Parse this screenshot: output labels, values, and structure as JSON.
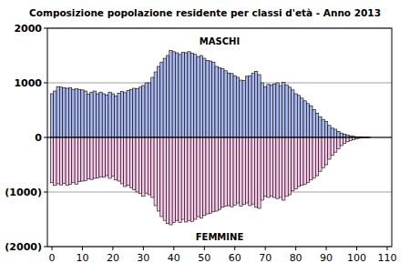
{
  "chart_data": {
    "type": "bar",
    "title": "Composizione popolazione residente per classi d'età - Anno 2013",
    "x": [
      0,
      1,
      2,
      3,
      4,
      5,
      6,
      7,
      8,
      9,
      10,
      11,
      12,
      13,
      14,
      15,
      16,
      17,
      18,
      19,
      20,
      21,
      22,
      23,
      24,
      25,
      26,
      27,
      28,
      29,
      30,
      31,
      32,
      33,
      34,
      35,
      36,
      37,
      38,
      39,
      40,
      41,
      42,
      43,
      44,
      45,
      46,
      47,
      48,
      49,
      50,
      51,
      52,
      53,
      54,
      55,
      56,
      57,
      58,
      59,
      60,
      61,
      62,
      63,
      64,
      65,
      66,
      67,
      68,
      69,
      70,
      71,
      72,
      73,
      74,
      75,
      76,
      77,
      78,
      79,
      80,
      81,
      82,
      83,
      84,
      85,
      86,
      87,
      88,
      89,
      90,
      91,
      92,
      93,
      94,
      95,
      96,
      97,
      98,
      99,
      100,
      101,
      102,
      103,
      104
    ],
    "series": [
      {
        "name": "MASCHI",
        "color": "#aab8f0",
        "values": [
          800,
          850,
          930,
          920,
          910,
          900,
          910,
          880,
          890,
          880,
          870,
          850,
          790,
          830,
          850,
          800,
          830,
          800,
          780,
          830,
          800,
          760,
          810,
          840,
          820,
          860,
          880,
          900,
          890,
          920,
          950,
          1000,
          1000,
          1100,
          1200,
          1300,
          1380,
          1450,
          1500,
          1590,
          1570,
          1550,
          1520,
          1560,
          1550,
          1570,
          1540,
          1520,
          1480,
          1500,
          1450,
          1410,
          1400,
          1380,
          1300,
          1280,
          1260,
          1220,
          1180,
          1170,
          1130,
          1100,
          1050,
          1040,
          1120,
          1130,
          1180,
          1210,
          1150,
          1000,
          930,
          970,
          960,
          980,
          1000,
          950,
          1010,
          960,
          920,
          870,
          800,
          770,
          720,
          670,
          620,
          580,
          510,
          440,
          380,
          330,
          290,
          220,
          170,
          150,
          110,
          80,
          60,
          40,
          30,
          20,
          10,
          8,
          5,
          3,
          2
        ]
      },
      {
        "name": "FEMMINE",
        "color": "#f8c8e8",
        "values": [
          -830,
          -880,
          -850,
          -870,
          -840,
          -880,
          -860,
          -830,
          -860,
          -810,
          -800,
          -790,
          -760,
          -770,
          -750,
          -740,
          -720,
          -730,
          -700,
          -750,
          -710,
          -780,
          -800,
          -850,
          -900,
          -880,
          -920,
          -960,
          -1000,
          -1030,
          -1080,
          -1020,
          -1050,
          -1100,
          -1250,
          -1350,
          -1450,
          -1520,
          -1580,
          -1600,
          -1560,
          -1520,
          -1560,
          -1500,
          -1550,
          -1520,
          -1540,
          -1500,
          -1450,
          -1480,
          -1430,
          -1400,
          -1390,
          -1360,
          -1350,
          -1320,
          -1280,
          -1260,
          -1250,
          -1270,
          -1240,
          -1200,
          -1260,
          -1230,
          -1200,
          -1250,
          -1220,
          -1280,
          -1300,
          -1150,
          -1080,
          -1100,
          -1070,
          -1100,
          -1120,
          -1100,
          -1150,
          -1080,
          -1050,
          -980,
          -940,
          -900,
          -880,
          -860,
          -830,
          -780,
          -740,
          -700,
          -620,
          -560,
          -500,
          -400,
          -330,
          -270,
          -210,
          -150,
          -110,
          -80,
          -60,
          -40,
          -25,
          -15,
          -10,
          -5,
          -3
        ]
      }
    ],
    "xlim": [
      -1.5,
      111.5
    ],
    "xticks": [
      0,
      10,
      20,
      30,
      40,
      50,
      60,
      70,
      80,
      90,
      100,
      110
    ],
    "ylim": [
      -2000,
      2000
    ],
    "yticks": [
      2000,
      1000,
      0,
      {
        "value": -1000,
        "label": "(1000)"
      },
      {
        "value": -2000,
        "label": "(2000)"
      }
    ],
    "grid": true
  }
}
